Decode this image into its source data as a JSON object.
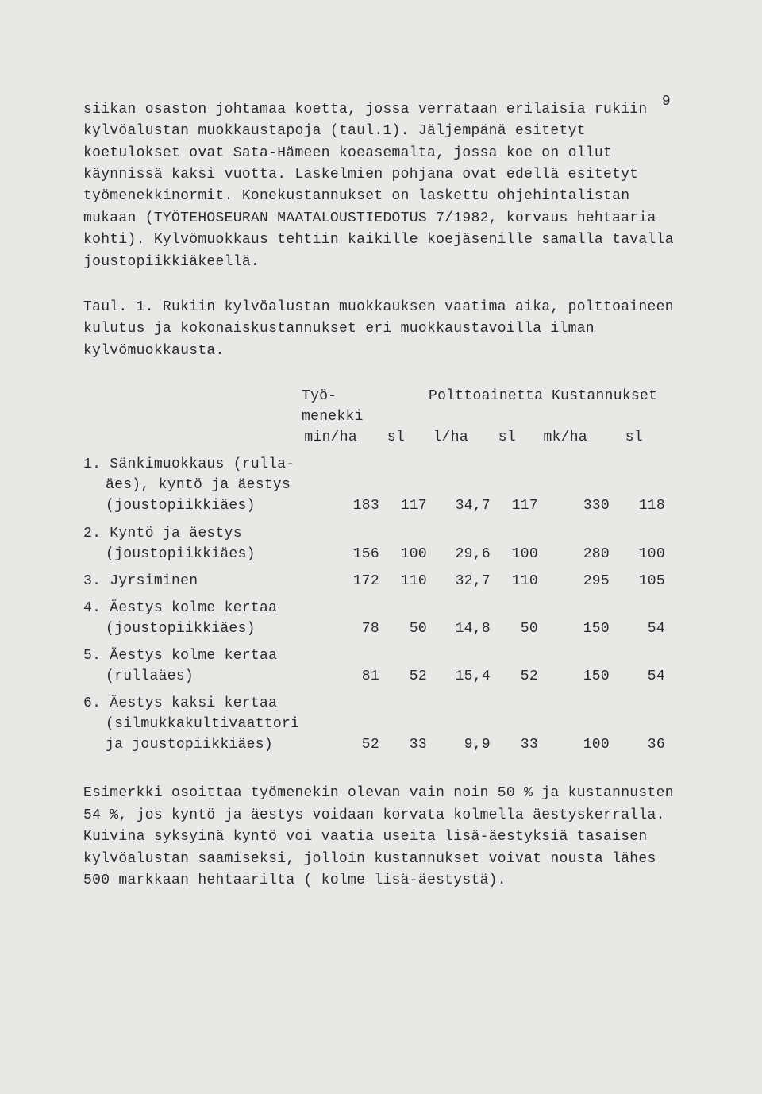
{
  "pageNumber": "9",
  "paragraph1": "siikan osaston johtamaa koetta, jossa verrataan erilaisia rukiin kylvöalustan muokkaustapoja (taul.1). Jäljempänä esitetyt koetulokset ovat Sata-Hämeen koeasemalta, jossa koe on ollut käynnissä kaksi vuotta. Laskelmien pohjana ovat edellä esitetyt työmenekkinormit. Konekustannukset on laskettu ohjehintalistan mukaan (TYÖTEHOSEURAN MAATALOUSTIEDOTUS 7/1982, korvaus hehtaaria kohti). Kylvömuokkaus tehtiin kaikille koejäsenille samalla tavalla joustopiikkiäkeellä.",
  "paragraph2": "Taul. 1. Rukiin kylvöalustan muokkauksen vaatima aika, polttoaineen kulutus ja kokonaiskustannukset eri muokkaustavoilla ilman kylvömuokkausta.",
  "table": {
    "headerGroups": {
      "tyo1": "Työ-",
      "tyo2": "menekki",
      "polt": "Polttoainetta",
      "kust": "Kustannukset"
    },
    "subHeaders": {
      "minha": "min/ha",
      "sl1": "sl",
      "lha": "l/ha",
      "sl2": "sl",
      "mkha": "mk/ha",
      "sl3": "sl"
    },
    "rows": [
      {
        "label": "1. Sänkimuokkaus (rulla-\näes), kyntö ja äestys\n(joustopiikkiäes)",
        "v": [
          "183",
          "117",
          "34,7",
          "117",
          "330",
          "118"
        ]
      },
      {
        "label": "2. Kyntö ja äestys\n(joustopiikkiäes)",
        "v": [
          "156",
          "100",
          "29,6",
          "100",
          "280",
          "100"
        ]
      },
      {
        "label": "3. Jyrsiminen",
        "v": [
          "172",
          "110",
          "32,7",
          "110",
          "295",
          "105"
        ]
      },
      {
        "label": "4. Äestys kolme kertaa\n(joustopiikkiäes)",
        "v": [
          "78",
          "50",
          "14,8",
          "50",
          "150",
          "54"
        ]
      },
      {
        "label": "5. Äestys kolme kertaa\n(rullaäes)",
        "v": [
          "81",
          "52",
          "15,4",
          "52",
          "150",
          "54"
        ]
      },
      {
        "label": "6. Äestys kaksi kertaa\n(silmukkakultivaattori\nja joustopiikkiäes)",
        "v": [
          "52",
          "33",
          "9,9",
          "33",
          "100",
          "36"
        ]
      }
    ]
  },
  "paragraph3": "Esimerkki osoittaa työmenekin olevan vain noin 50 % ja kustannusten 54 %, jos kyntö ja äestys voidaan korvata kolmella  äestyskerralla. Kuivina syksyinä kyntö voi vaatia useita lisä-äestyksiä tasaisen kylvöalustan saamiseksi, jolloin kustannukset voivat nousta lähes 500 markkaan hehtaarilta ( kolme lisä-äestystä)."
}
